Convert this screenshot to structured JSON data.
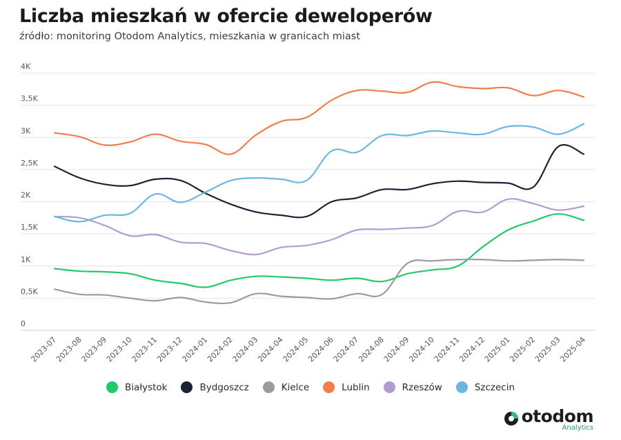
{
  "header": {
    "title": "Liczba mieszkań w ofercie deweloperów",
    "subtitle": "źródło: monitoring Otodom Analytics, mieszkania w granicach miast"
  },
  "logo": {
    "word": "otodom",
    "sub": "Analytics"
  },
  "chart_data": {
    "type": "line",
    "title": "Liczba mieszkań w ofercie deweloperów",
    "subtitle": "źródło: monitoring Otodom Analytics, mieszkania w granicach miast",
    "xlabel": "",
    "ylabel": "",
    "ylim": [
      0,
      4000
    ],
    "yticks": [
      {
        "value": 0,
        "label": "0"
      },
      {
        "value": 500,
        "label": "0,5K"
      },
      {
        "value": 1000,
        "label": "1K"
      },
      {
        "value": 1500,
        "label": "1,5K"
      },
      {
        "value": 2000,
        "label": "2K"
      },
      {
        "value": 2500,
        "label": "2,5K"
      },
      {
        "value": 3000,
        "label": "3K"
      },
      {
        "value": 3500,
        "label": "3,5K"
      },
      {
        "value": 4000,
        "label": "4K"
      }
    ],
    "grid": true,
    "legend_position": "bottom",
    "categories": [
      "2023-07",
      "2023-08",
      "2023-09",
      "2023-10",
      "2023-11",
      "2023-12",
      "2024-01",
      "2024-02",
      "2024-03",
      "2024-04",
      "2024-05",
      "2024-06",
      "2024-07",
      "2024-08",
      "2024-09",
      "2024-10",
      "2024-11",
      "2024-12",
      "2025-01",
      "2025-02",
      "2025-03",
      "2025-04"
    ],
    "series": [
      {
        "name": "Białystok",
        "color": "#22c96b",
        "values": [
          960,
          920,
          910,
          880,
          780,
          730,
          670,
          780,
          840,
          830,
          810,
          780,
          810,
          760,
          880,
          940,
          1000,
          1300,
          1560,
          1700,
          1810,
          1710
        ]
      },
      {
        "name": "Bydgoszcz",
        "color": "#1a2233",
        "values": [
          2550,
          2370,
          2270,
          2250,
          2350,
          2330,
          2130,
          1960,
          1840,
          1790,
          1770,
          2000,
          2060,
          2190,
          2190,
          2280,
          2320,
          2300,
          2290,
          2230,
          2860,
          2740
        ]
      },
      {
        "name": "Kielce",
        "color": "#9b9b9b",
        "values": [
          640,
          560,
          550,
          500,
          460,
          510,
          440,
          430,
          570,
          530,
          510,
          490,
          570,
          560,
          1040,
          1080,
          1100,
          1100,
          1080,
          1090,
          1100,
          1090
        ]
      },
      {
        "name": "Lublin",
        "color": "#f07e4b",
        "values": [
          3070,
          3010,
          2880,
          2930,
          3050,
          2940,
          2890,
          2740,
          3040,
          3250,
          3310,
          3580,
          3730,
          3720,
          3700,
          3860,
          3790,
          3760,
          3770,
          3650,
          3730,
          3630
        ]
      },
      {
        "name": "Rzeszów",
        "color": "#b49ad3",
        "values": [
          1770,
          1750,
          1630,
          1470,
          1490,
          1370,
          1350,
          1240,
          1180,
          1290,
          1320,
          1410,
          1560,
          1570,
          1590,
          1630,
          1850,
          1840,
          2040,
          1970,
          1870,
          1930
        ]
      },
      {
        "name": "Szczecin",
        "color": "#6ab8e0",
        "values": [
          1770,
          1690,
          1790,
          1820,
          2120,
          1990,
          2150,
          2330,
          2370,
          2350,
          2330,
          2790,
          2770,
          3030,
          3030,
          3100,
          3070,
          3050,
          3170,
          3160,
          3050,
          3210
        ]
      }
    ]
  }
}
